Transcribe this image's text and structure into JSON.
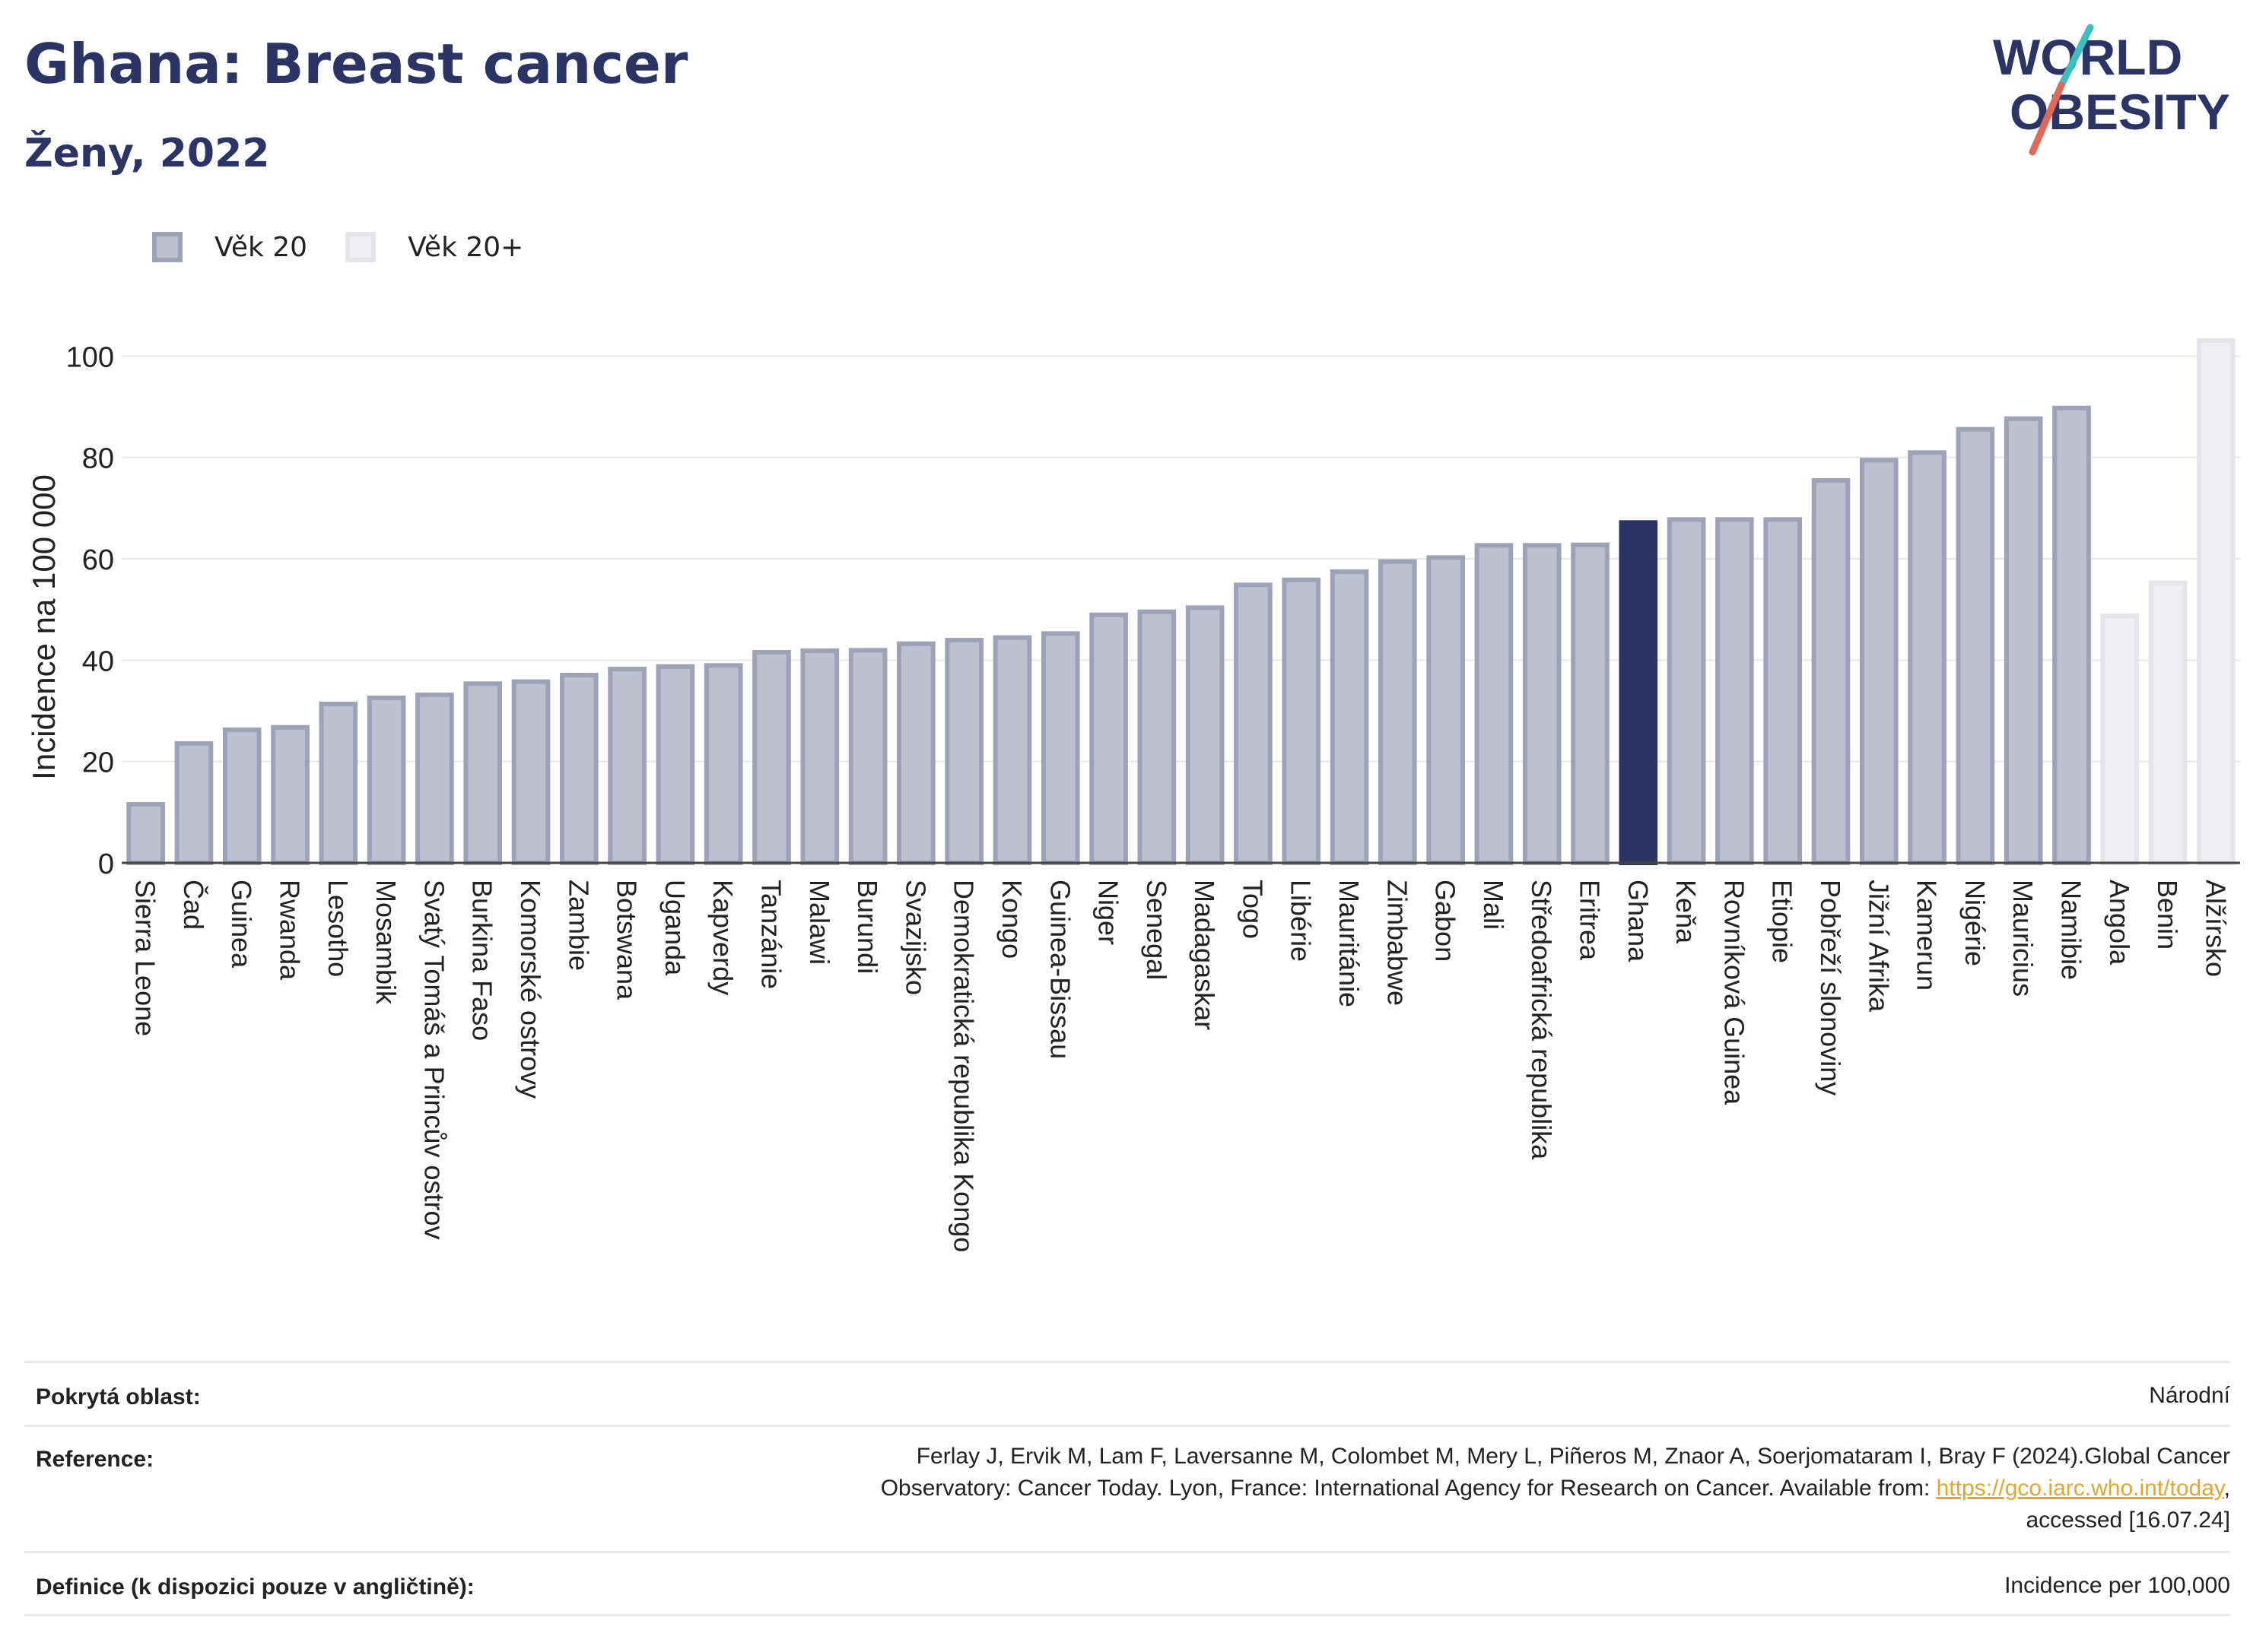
{
  "header": {
    "title": "Ghana: Breast cancer",
    "subtitle": "Ženy, 2022",
    "logo_line1": "WORLD",
    "logo_line2": "OBESITY"
  },
  "legend": [
    {
      "label": "Věk 20",
      "color": "#bcc0cf",
      "border": "#9ca2b8"
    },
    {
      "label": "Věk 20+",
      "color": "#eeeff3",
      "border": "#e3e5eb"
    }
  ],
  "colors": {
    "bar_fill": "#bcc0cf",
    "bar_border": "#9ca2b8",
    "highlight": "#2a3566",
    "light_fill": "#eeeff3",
    "light_border": "#e3e5eb",
    "grid": "#e6e6e6",
    "link": "#e3a72f"
  },
  "chart_data": {
    "type": "bar",
    "ylabel": "Incidence na 100 000",
    "ylim": [
      0,
      105
    ],
    "yticks": [
      0,
      20,
      40,
      60,
      80,
      100
    ],
    "grid": true,
    "highlight_category": "Ghana",
    "categories": [
      "Sierra Leone",
      "Čad",
      "Guinea",
      "Rwanda",
      "Lesotho",
      "Mosambik",
      "Svatý Tomáš a Princův ostrov",
      "Burkina Faso",
      "Komorské ostrovy",
      "Zambie",
      "Botswana",
      "Uganda",
      "Kapverdy",
      "Tanzánie",
      "Malawi",
      "Burundi",
      "Svazijsko",
      "Demokratická republika Kongo",
      "Kongo",
      "Guinea-Bissau",
      "Niger",
      "Senegal",
      "Madagaskar",
      "Togo",
      "Libérie",
      "Mauritánie",
      "Zimbabwe",
      "Gabon",
      "Mali",
      "Středoafrická republika",
      "Eritrea",
      "Ghana",
      "Keňa",
      "Rovníková Guinea",
      "Etiopie",
      "Pobřeží slonoviny",
      "Jižní Afrika",
      "Kamerun",
      "Nigérie",
      "Mauricius",
      "Namibie",
      "Angola",
      "Benin",
      "Alžírsko"
    ],
    "values": [
      12,
      24,
      26.7,
      27.2,
      31.8,
      33,
      33.6,
      35.8,
      36.2,
      37.5,
      38.7,
      39.2,
      39.4,
      42,
      42.3,
      42.4,
      43.7,
      44.4,
      44.9,
      45.7,
      49.4,
      50,
      50.8,
      55.3,
      56.3,
      57.9,
      59.9,
      60.7,
      63.1,
      63.1,
      63.2,
      67.6,
      68.2,
      68.2,
      68.2,
      75.9,
      79.9,
      81.4,
      86,
      88.1,
      90.2,
      49.2,
      55.7,
      103.5
    ],
    "series_group": [
      "Věk 20",
      "Věk 20",
      "Věk 20",
      "Věk 20",
      "Věk 20",
      "Věk 20",
      "Věk 20",
      "Věk 20",
      "Věk 20",
      "Věk 20",
      "Věk 20",
      "Věk 20",
      "Věk 20",
      "Věk 20",
      "Věk 20",
      "Věk 20",
      "Věk 20",
      "Věk 20",
      "Věk 20",
      "Věk 20",
      "Věk 20",
      "Věk 20",
      "Věk 20",
      "Věk 20",
      "Věk 20",
      "Věk 20",
      "Věk 20",
      "Věk 20",
      "Věk 20",
      "Věk 20",
      "Věk 20",
      "Věk 20",
      "Věk 20",
      "Věk 20",
      "Věk 20",
      "Věk 20",
      "Věk 20",
      "Věk 20",
      "Věk 20",
      "Věk 20",
      "Věk 20",
      "Věk 20+",
      "Věk 20+",
      "Věk 20+"
    ]
  },
  "meta": {
    "coverage_label": "Pokrytá oblast:",
    "coverage_value": "Národní",
    "reference_label": "Reference:",
    "reference_line1": "Ferlay J, Ervik M, Lam F, Laversanne M, Colombet M, Mery L, Piñeros M, Znaor A, Soerjomataram I, Bray F (2024).Global Cancer",
    "reference_line2_pre": "Observatory: Cancer Today. Lyon, France: International Agency for Research on Cancer. Available from: ",
    "reference_link": "https://gco.iarc.who.int/today",
    "reference_line2_post": ",",
    "reference_line3": "accessed [16.07.24]",
    "definition_label": "Definice (k dispozici pouze v angličtině):",
    "definition_value": "Incidence per 100,000"
  }
}
